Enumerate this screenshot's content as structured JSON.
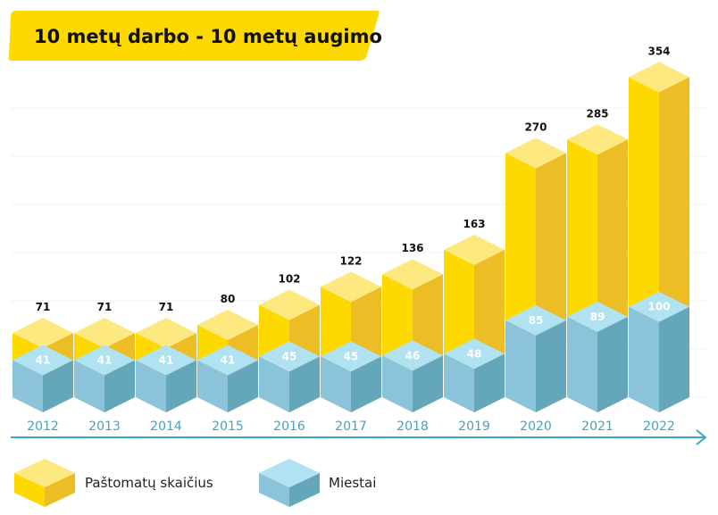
{
  "title": "10 metų darbo - 10 metų augimo",
  "colors": {
    "yellow_top": "#fde97f",
    "yellow_front": "#fed900",
    "yellow_side": "#ecbd24",
    "blue_top": "#b0e2f2",
    "blue_front": "#8bc3db",
    "blue_side": "#64a7bb",
    "axis": "#3aa9c6",
    "title_bg": "#fed900"
  },
  "chart_data": {
    "type": "bar",
    "categories": [
      "2012",
      "2013",
      "2014",
      "2015",
      "2016",
      "2017",
      "2018",
      "2019",
      "2020",
      "2021",
      "2022"
    ],
    "series": [
      {
        "name": "Paštomatų skaičius",
        "values": [
          71,
          71,
          71,
          80,
          102,
          122,
          136,
          163,
          270,
          285,
          354
        ]
      },
      {
        "name": "Miestai",
        "values": [
          41,
          41,
          41,
          41,
          45,
          45,
          46,
          48,
          85,
          89,
          100
        ]
      }
    ],
    "title": "10 metų darbo - 10 metų augimo",
    "legend_placement": "bottom"
  },
  "legend": [
    {
      "label": "Paštomatų skaičius",
      "icon": "yellow-cube-icon"
    },
    {
      "label": "Miestai",
      "icon": "blue-cube-icon"
    }
  ]
}
